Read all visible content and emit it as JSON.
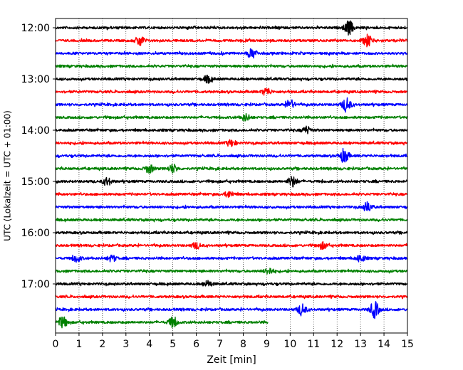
{
  "chart_data": {
    "type": "line",
    "title": "",
    "xlabel": "Zeit  [min]",
    "ylabel": "UTC (Lokalzeit = UTC + 01:00)",
    "xlim": [
      0,
      15
    ],
    "x_ticks": [
      0,
      1,
      2,
      3,
      4,
      5,
      6,
      7,
      8,
      9,
      10,
      11,
      12,
      13,
      14,
      15
    ],
    "y_time_ticks": [
      "12:00",
      "13:00",
      "14:00",
      "15:00",
      "16:00",
      "17:00"
    ],
    "grid": "vertical dotted",
    "legend": "none",
    "trace_interval_minutes": 15,
    "trace_colors_cycle": [
      "#000000",
      "#ff0000",
      "#0000ff",
      "#008000"
    ],
    "traces": [
      {
        "start": "12:00",
        "color": "#000000",
        "end_min": 15,
        "bursts": [
          [
            12.5,
            3.0
          ]
        ]
      },
      {
        "start": "12:15",
        "color": "#ff0000",
        "end_min": 15,
        "bursts": [
          [
            3.6,
            2.2
          ],
          [
            13.3,
            2.6
          ]
        ]
      },
      {
        "start": "12:30",
        "color": "#0000ff",
        "end_min": 15,
        "bursts": [
          [
            8.4,
            2.0
          ]
        ]
      },
      {
        "start": "12:45",
        "color": "#008000",
        "end_min": 15,
        "bursts": []
      },
      {
        "start": "13:00",
        "color": "#000000",
        "end_min": 15,
        "bursts": [
          [
            6.5,
            1.4
          ]
        ]
      },
      {
        "start": "13:15",
        "color": "#ff0000",
        "end_min": 15,
        "bursts": [
          [
            9.0,
            1.6
          ]
        ]
      },
      {
        "start": "13:30",
        "color": "#0000ff",
        "end_min": 15,
        "bursts": [
          [
            10.0,
            2.0
          ],
          [
            12.4,
            3.0
          ]
        ]
      },
      {
        "start": "13:45",
        "color": "#008000",
        "end_min": 15,
        "bursts": [
          [
            8.1,
            1.5
          ]
        ]
      },
      {
        "start": "14:00",
        "color": "#000000",
        "end_min": 15,
        "bursts": [
          [
            10.7,
            1.5
          ]
        ]
      },
      {
        "start": "14:15",
        "color": "#ff0000",
        "end_min": 15,
        "bursts": [
          [
            7.5,
            1.3
          ]
        ]
      },
      {
        "start": "14:30",
        "color": "#0000ff",
        "end_min": 15,
        "bursts": [
          [
            12.3,
            3.0
          ]
        ]
      },
      {
        "start": "14:45",
        "color": "#008000",
        "end_min": 15,
        "bursts": [
          [
            4.0,
            1.8
          ],
          [
            5.0,
            1.8
          ]
        ]
      },
      {
        "start": "15:00",
        "color": "#000000",
        "end_min": 15,
        "bursts": [
          [
            2.2,
            1.6
          ],
          [
            10.1,
            2.3
          ]
        ]
      },
      {
        "start": "15:15",
        "color": "#ff0000",
        "end_min": 15,
        "bursts": [
          [
            7.4,
            1.3
          ]
        ]
      },
      {
        "start": "15:30",
        "color": "#0000ff",
        "end_min": 15,
        "bursts": [
          [
            13.3,
            2.0
          ]
        ]
      },
      {
        "start": "15:45",
        "color": "#008000",
        "end_min": 15,
        "bursts": []
      },
      {
        "start": "16:00",
        "color": "#000000",
        "end_min": 15,
        "bursts": []
      },
      {
        "start": "16:15",
        "color": "#ff0000",
        "end_min": 15,
        "bursts": [
          [
            6.0,
            1.3
          ],
          [
            11.4,
            1.3
          ]
        ]
      },
      {
        "start": "16:30",
        "color": "#0000ff",
        "end_min": 15,
        "bursts": [
          [
            0.9,
            1.4
          ],
          [
            2.4,
            1.3
          ],
          [
            13.0,
            1.5
          ]
        ]
      },
      {
        "start": "16:45",
        "color": "#008000",
        "end_min": 15,
        "bursts": [
          [
            9.1,
            1.4
          ]
        ]
      },
      {
        "start": "17:00",
        "color": "#000000",
        "end_min": 15,
        "bursts": [
          [
            6.5,
            1.2
          ]
        ]
      },
      {
        "start": "17:15",
        "color": "#ff0000",
        "end_min": 15,
        "bursts": []
      },
      {
        "start": "17:30",
        "color": "#0000ff",
        "end_min": 15,
        "bursts": [
          [
            10.5,
            2.4
          ],
          [
            13.6,
            3.5
          ]
        ]
      },
      {
        "start": "17:45",
        "color": "#008000",
        "end_min": 9.05,
        "bursts": [
          [
            0.3,
            2.4
          ],
          [
            5.0,
            2.2
          ]
        ]
      }
    ]
  }
}
